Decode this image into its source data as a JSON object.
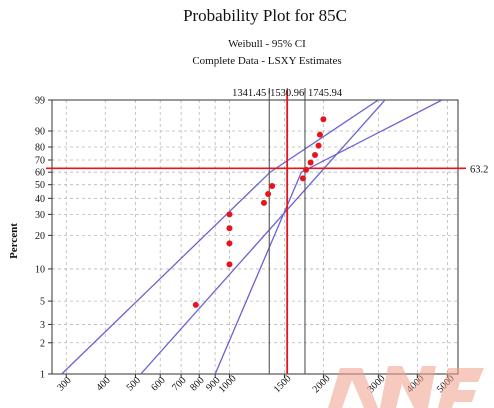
{
  "chart_data": {
    "type": "scatter",
    "title": "Probability Plot for  85C",
    "subtitle_lines": [
      "Weibull - 95% CI",
      "Complete Data - LSXY Estimates"
    ],
    "ylabel": "Percent",
    "xlabel": "",
    "x_scale": "log",
    "y_scale": "weibull-probability",
    "xlim": [
      270,
      5400
    ],
    "ylim": [
      1,
      99
    ],
    "x_ticks": [
      300,
      400,
      500,
      600,
      700,
      800,
      900,
      1000,
      1500,
      2000,
      3000,
      4000,
      5000
    ],
    "x_tick_labels": [
      "300",
      "400",
      "500",
      "600",
      "700",
      "800",
      "900",
      "1000",
      "1500",
      "2000",
      "3000",
      "4000",
      "5000"
    ],
    "y_ticks": [
      1,
      2,
      3,
      5,
      10,
      20,
      30,
      40,
      50,
      60,
      70,
      80,
      90,
      99
    ],
    "y_tick_labels": [
      "1",
      "2",
      "3",
      "5",
      "10",
      "20",
      "30",
      "40",
      "50",
      "60",
      "70",
      "80",
      "90",
      "99"
    ],
    "grid": true,
    "points": [
      {
        "x": 780,
        "y": 4.6
      },
      {
        "x": 1000,
        "y": 11
      },
      {
        "x": 1000,
        "y": 17
      },
      {
        "x": 1000,
        "y": 23
      },
      {
        "x": 1000,
        "y": 30
      },
      {
        "x": 1290,
        "y": 37
      },
      {
        "x": 1330,
        "y": 43
      },
      {
        "x": 1370,
        "y": 49
      },
      {
        "x": 1720,
        "y": 55
      },
      {
        "x": 1760,
        "y": 62
      },
      {
        "x": 1820,
        "y": 68
      },
      {
        "x": 1880,
        "y": 74
      },
      {
        "x": 1930,
        "y": 81
      },
      {
        "x": 1950,
        "y": 88
      },
      {
        "x": 2000,
        "y": 95
      }
    ],
    "fit_line": [
      {
        "x": 520,
        "y": 1
      },
      {
        "x": 3150,
        "y": 99
      }
    ],
    "ci_lower": [
      {
        "x": 290,
        "y": 1
      },
      {
        "x": 1350,
        "y": 60
      },
      {
        "x": 3000,
        "y": 99
      }
    ],
    "ci_upper": [
      {
        "x": 900,
        "y": 1
      },
      {
        "x": 1700,
        "y": 60
      },
      {
        "x": 4800,
        "y": 99
      }
    ],
    "reference_lines": {
      "horizontal": {
        "y": 63.2,
        "label": "63.2",
        "color": "#e8141b"
      },
      "vertical": [
        {
          "x": 1341.45,
          "label": "1341.45",
          "color": "#555555"
        },
        {
          "x": 1530.96,
          "label": "1530.96",
          "color": "#e8141b"
        },
        {
          "x": 1745.94,
          "label": "1745.94",
          "color": "#555555"
        }
      ]
    },
    "colors": {
      "points": "#e8141b",
      "lines": "#6a63d3",
      "grid": "#b8b8b8",
      "reference": "#e8141b"
    }
  }
}
